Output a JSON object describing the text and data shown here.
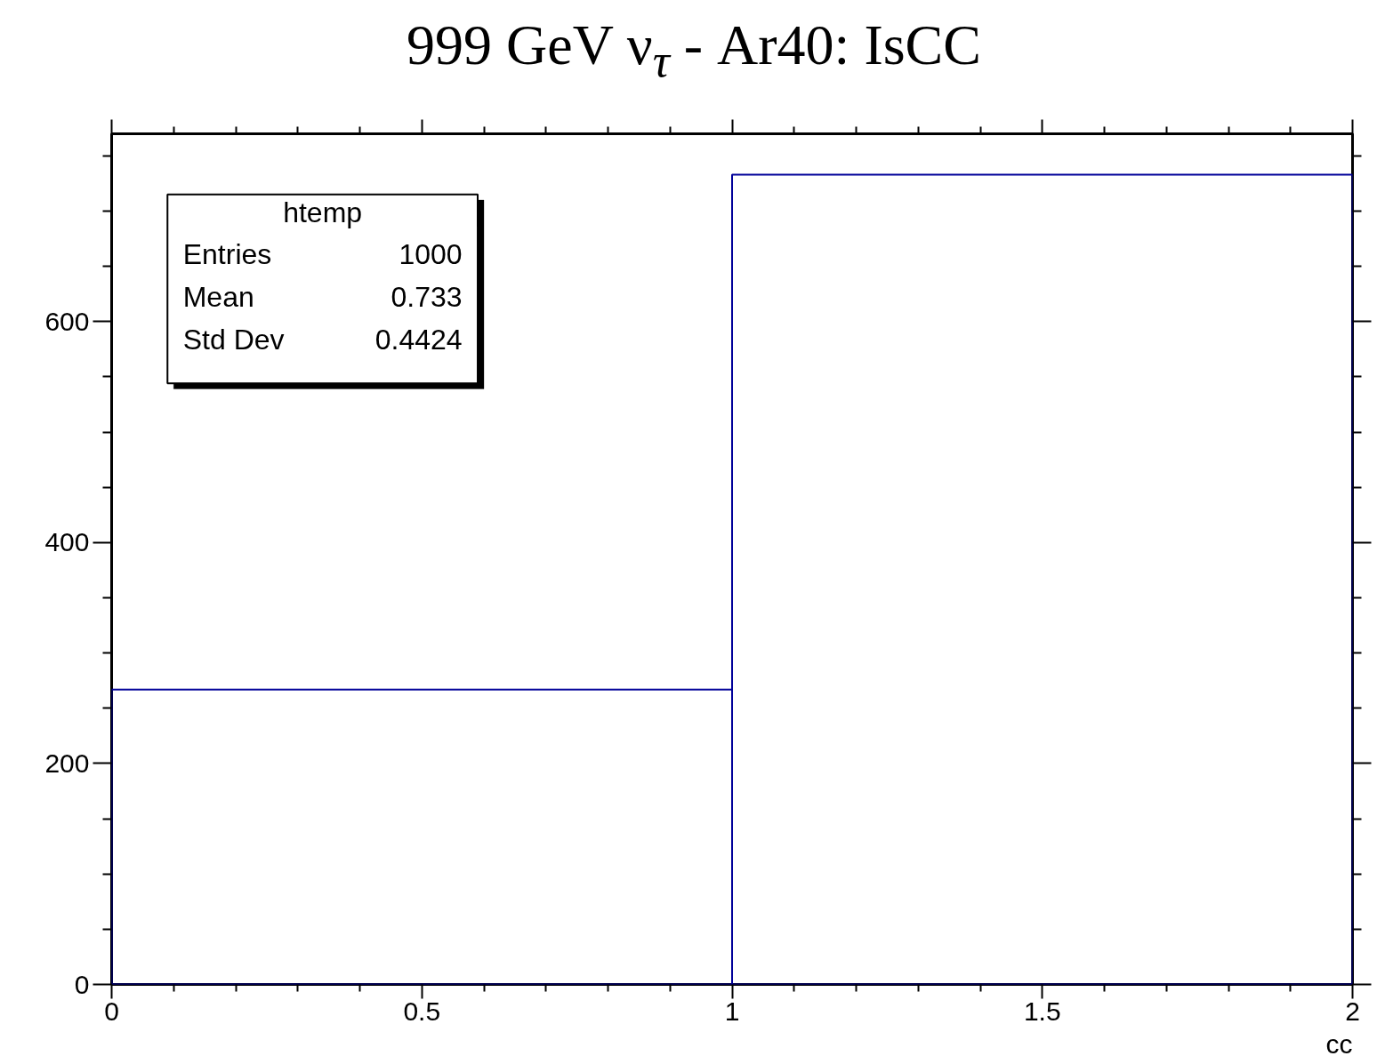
{
  "chart_data": {
    "type": "histogram",
    "title": "999 GeV ν$_{τ}$ - Ar40: IsCC",
    "xlabel": "cc",
    "bins": [
      0,
      1,
      2
    ],
    "values": [
      267,
      733
    ],
    "color": "#000099",
    "xlim": [
      0,
      2
    ],
    "ylim": [
      0,
      770
    ],
    "xticks": [
      0,
      0.5,
      1,
      1.5,
      2
    ],
    "yticks": [
      0,
      200,
      400,
      600
    ],
    "annotations": [
      "htemp",
      "Entries",
      "1000",
      "Mean",
      "0.733",
      "Std Dev",
      "0.4424"
    ]
  }
}
